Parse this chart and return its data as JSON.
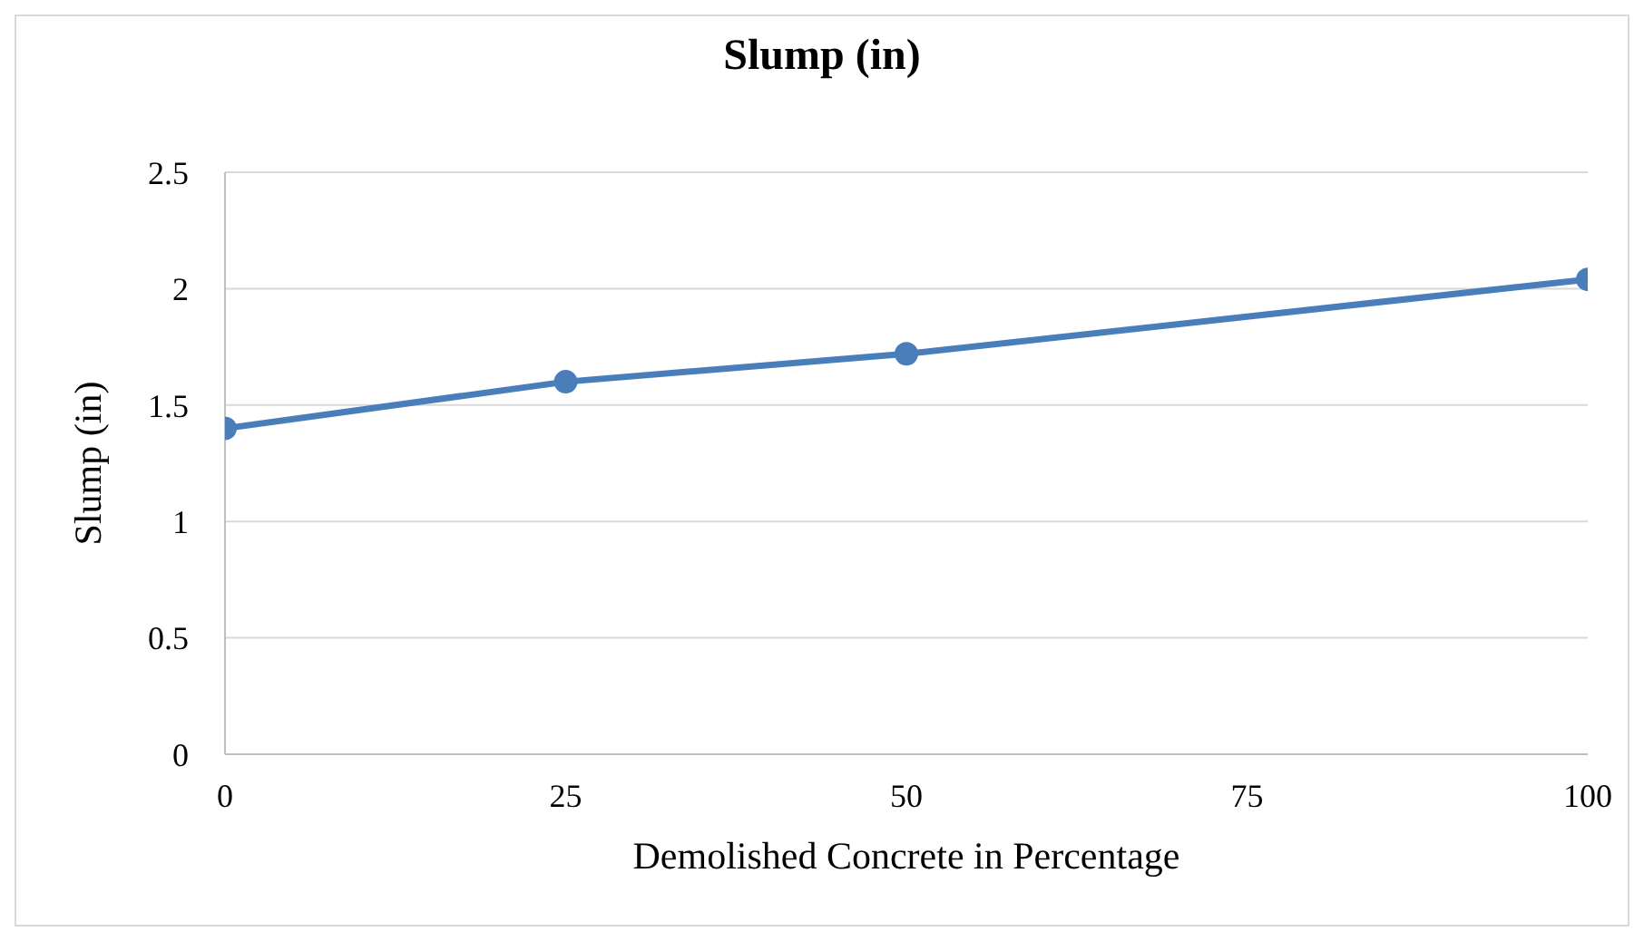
{
  "chart_data": {
    "type": "line",
    "title": "Slump (in)",
    "xlabel": "Demolished Concrete in Percentage",
    "ylabel": "Slump (in)",
    "x": [
      0,
      25,
      50,
      100
    ],
    "series": [
      {
        "color": "#4a7ebb",
        "values": [
          1.4,
          1.6,
          1.72,
          2.04
        ]
      }
    ],
    "xlim": [
      0,
      100
    ],
    "xticks": [
      0,
      25,
      50,
      75,
      100
    ],
    "ylim": [
      0,
      2.5
    ],
    "yticks": [
      0,
      0.5,
      1,
      1.5,
      2,
      2.5
    ],
    "grid": "y",
    "marker": "circle",
    "line_style": "solid"
  }
}
